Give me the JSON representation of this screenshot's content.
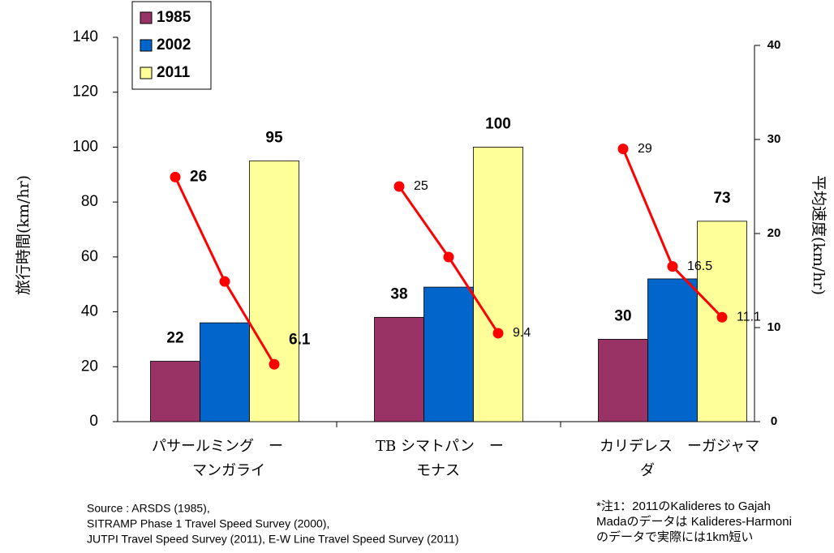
{
  "chart_data": {
    "type": "bar",
    "ylabel": "旅行時間(km/hr)",
    "y2label": "平均速度(km/hr)",
    "categories": [
      [
        "パサールミング　ー",
        "マンガライ"
      ],
      [
        "TB シマトパン　ー",
        "モナス"
      ],
      [
        "カリデレス　ーガジャマ",
        "ダ"
      ]
    ],
    "series": [
      {
        "name": "1985",
        "color": "#993366",
        "values": [
          22,
          38,
          30
        ],
        "data_labels": true
      },
      {
        "name": "2002",
        "color": "#0066cc",
        "values": [
          36,
          49,
          52
        ],
        "data_labels": false
      },
      {
        "name": "2011",
        "color": "#ffff99",
        "values": [
          95,
          100,
          73
        ],
        "data_labels": true
      }
    ],
    "lines": [
      {
        "color": "#ff0000",
        "axis": "y2",
        "values": [
          26,
          14.9,
          6.1
        ],
        "value_labels": [
          "26",
          null,
          "6.1"
        ]
      },
      {
        "color": "#ff0000",
        "axis": "y2",
        "values": [
          25,
          17.5,
          9.4
        ],
        "value_labels": [
          "25",
          null,
          "9.4"
        ]
      },
      {
        "color": "#ff0000",
        "axis": "y2",
        "values": [
          29,
          16.5,
          11.1
        ],
        "value_labels": [
          "29",
          "16.5",
          "11.1"
        ]
      }
    ],
    "ylim": [
      0,
      140
    ],
    "yticks": [
      0,
      20,
      40,
      60,
      80,
      100,
      120,
      140
    ],
    "y2lim": [
      0,
      40
    ],
    "y2ticks": [
      0,
      10,
      20,
      30,
      40
    ],
    "legend": "top-left",
    "source": [
      "Source : ARSDS (1985),",
      "SITRAMP Phase 1 Travel Speed Survey (2000),",
      "JUTPI Travel Speed Survey (2011), E-W Line Travel Speed Survey (2011)"
    ],
    "note": [
      "*注1：2011のKalideres to Gajah",
      "Madaのデータは Kalideres-Harmoni",
      "のデータで実際には1km短い"
    ]
  }
}
